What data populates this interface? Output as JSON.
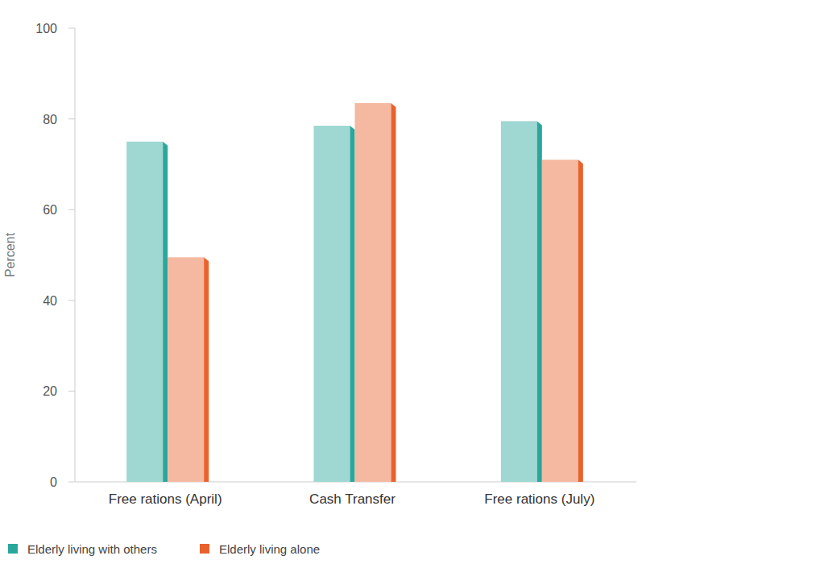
{
  "chart_data": {
    "type": "bar",
    "y_label": "Percent",
    "categories": [
      "Free rations (April)",
      "Cash Transfer",
      "Free rations (July)"
    ],
    "series": [
      {
        "name": "Elderly living with others",
        "color": "#2aa79b",
        "values": [
          75,
          78.5,
          79.5
        ]
      },
      {
        "name": "Elderly living alone",
        "color": "#e9622c",
        "values": [
          49.5,
          83.5,
          71
        ]
      }
    ],
    "ylim": [
      0,
      100
    ],
    "yticks": [
      0,
      20,
      40,
      60,
      80,
      100
    ],
    "grid": false,
    "legend": "bottom"
  }
}
